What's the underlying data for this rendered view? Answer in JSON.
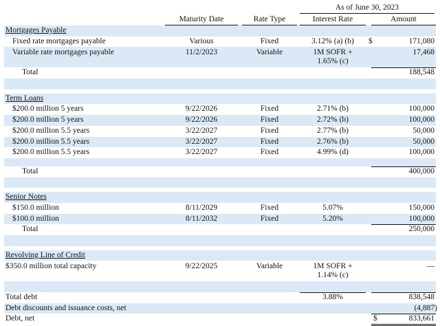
{
  "header": {
    "as_of": "As of June 30, 2023",
    "columns": [
      "Maturity Date",
      "Rate Type",
      "Interest Rate",
      "Amount"
    ]
  },
  "mortgages": {
    "title": "Mortgages Payable",
    "rows": [
      {
        "label": "Fixed rate mortgages payable",
        "maturity": "Various",
        "rate_type": "Fixed",
        "interest": "3.12% (a) (b)",
        "dollar": "$",
        "amount": "171,080"
      },
      {
        "label": "Variable rate mortgages payable",
        "maturity": "11/2/2023",
        "rate_type": "Variable",
        "interest": "1M SOFR + 1.65% (c)",
        "dollar": "",
        "amount": "17,468"
      }
    ],
    "total_label": "Total",
    "total": "188,548"
  },
  "term_loans": {
    "title": "Term Loans",
    "rows": [
      {
        "label": "$200.0 million 5 years",
        "maturity": "9/22/2026",
        "rate_type": "Fixed",
        "interest": "2.71% (b)",
        "amount": "100,000"
      },
      {
        "label": "$200.0 million 5 years",
        "maturity": "9/22/2026",
        "rate_type": "Fixed",
        "interest": "2.72% (b)",
        "amount": "100,000"
      },
      {
        "label": "$200.0 million 5.5 years",
        "maturity": "3/22/2027",
        "rate_type": "Fixed",
        "interest": "2.77% (b)",
        "amount": "50,000"
      },
      {
        "label": "$200.0 million 5.5 years",
        "maturity": "3/22/2027",
        "rate_type": "Fixed",
        "interest": "2.76% (b)",
        "amount": "50,000"
      },
      {
        "label": "$200.0 million 5.5 years",
        "maturity": "3/22/2027",
        "rate_type": "Fixed",
        "interest": "4.99% (d)",
        "amount": "100,000"
      }
    ],
    "total_label": "Total",
    "total": "400,000"
  },
  "senior_notes": {
    "title": "Senior Notes",
    "rows": [
      {
        "label": "$150.0 million",
        "maturity": "8/11/2029",
        "rate_type": "Fixed",
        "interest": "5.07%",
        "amount": "150,000"
      },
      {
        "label": "$100.0 million",
        "maturity": "8/11/2032",
        "rate_type": "Fixed",
        "interest": "5.20%",
        "amount": "100,000"
      }
    ],
    "total_label": "Total",
    "total": "250,000"
  },
  "revolver": {
    "title": "Revolving Line of Credit",
    "row": {
      "label": "$350.0 million total capacity",
      "maturity": "9/22/2025",
      "rate_type": "Variable",
      "interest": "1M SOFR + 1.14% (c)",
      "amount": "—"
    }
  },
  "summary": {
    "total_debt_label": "Total debt",
    "total_debt_rate": "3.88%",
    "total_debt": "838,548",
    "discounts_label": "Debt discounts and issuance costs, net",
    "discounts": "(4,887)",
    "net_label": "Debt, net",
    "net_dollar": "$",
    "net": "833,661"
  }
}
